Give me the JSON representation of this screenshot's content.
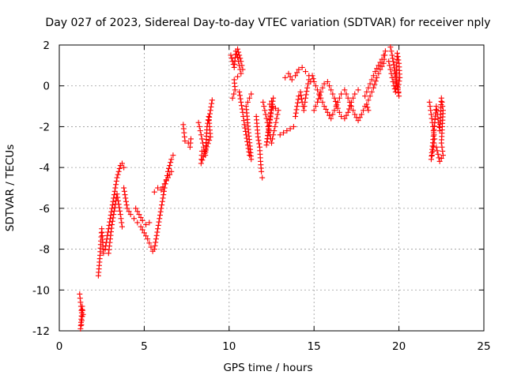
{
  "chart_data": {
    "type": "scatter",
    "title": "Day 027 of 2023, Sidereal Day-to-day VTEC variation (SDTVAR) for receiver nply",
    "xlabel": "GPS time / hours",
    "ylabel": "SDTVAR / TECUs",
    "xlim": [
      0,
      25
    ],
    "ylim": [
      -12,
      2
    ],
    "xticks": [
      0,
      5,
      10,
      15,
      20,
      25
    ],
    "yticks": [
      -12,
      -10,
      -8,
      -6,
      -4,
      -2,
      0,
      2
    ],
    "xtick_labels": [
      "0",
      "5",
      "10",
      "15",
      "20",
      "25"
    ],
    "ytick_labels": [
      "-12",
      "-10",
      "-8",
      "-6",
      "-4",
      "-2",
      "0",
      "2"
    ],
    "grid": true,
    "marker": "+",
    "series": [
      {
        "name": "SDTVAR",
        "color": "#ff0000",
        "segments": [
          [
            [
              1.2,
              -10.2
            ],
            [
              1.25,
              -10.6
            ],
            [
              1.3,
              -11.0
            ],
            [
              1.35,
              -11.3
            ],
            [
              1.3,
              -11.7
            ],
            [
              1.25,
              -11.9
            ],
            [
              1.35,
              -10.8
            ],
            [
              1.4,
              -11.2
            ]
          ],
          [
            [
              2.3,
              -9.3
            ],
            [
              2.35,
              -8.8
            ],
            [
              2.4,
              -8.3
            ],
            [
              2.45,
              -7.6
            ],
            [
              2.5,
              -7.0
            ],
            [
              2.6,
              -8.2
            ],
            [
              2.7,
              -8.0
            ],
            [
              2.8,
              -7.5
            ],
            [
              2.9,
              -7.0
            ],
            [
              3.0,
              -6.5
            ],
            [
              3.1,
              -6.0
            ],
            [
              3.2,
              -5.5
            ],
            [
              3.3,
              -5.0
            ],
            [
              3.4,
              -4.5
            ],
            [
              3.5,
              -4.2
            ],
            [
              3.6,
              -3.9
            ],
            [
              3.7,
              -3.8
            ],
            [
              3.8,
              -4.0
            ]
          ],
          [
            [
              2.9,
              -8.2
            ],
            [
              3.0,
              -7.5
            ],
            [
              3.1,
              -6.8
            ],
            [
              3.2,
              -6.3
            ],
            [
              3.3,
              -5.8
            ],
            [
              3.4,
              -5.3
            ],
            [
              3.5,
              -5.8
            ],
            [
              3.6,
              -6.3
            ],
            [
              3.7,
              -6.9
            ]
          ],
          [
            [
              3.8,
              -5.0
            ],
            [
              3.9,
              -5.5
            ],
            [
              4.0,
              -6.0
            ],
            [
              4.2,
              -6.3
            ],
            [
              4.4,
              -6.5
            ],
            [
              4.6,
              -6.7
            ],
            [
              4.8,
              -6.9
            ],
            [
              5.0,
              -7.2
            ],
            [
              5.2,
              -7.5
            ],
            [
              5.4,
              -7.9
            ],
            [
              5.5,
              -8.1
            ],
            [
              5.6,
              -8.0
            ],
            [
              5.7,
              -7.5
            ],
            [
              5.8,
              -7.0
            ],
            [
              5.9,
              -6.5
            ],
            [
              6.0,
              -6.0
            ],
            [
              6.1,
              -5.5
            ],
            [
              6.2,
              -5.0
            ],
            [
              6.3,
              -4.6
            ],
            [
              6.4,
              -4.2
            ],
            [
              6.5,
              -3.9
            ],
            [
              6.6,
              -3.6
            ],
            [
              6.7,
              -3.4
            ]
          ],
          [
            [
              4.5,
              -6.0
            ],
            [
              4.7,
              -6.3
            ],
            [
              4.9,
              -6.6
            ],
            [
              5.1,
              -6.8
            ],
            [
              5.3,
              -6.7
            ]
          ],
          [
            [
              5.6,
              -5.2
            ],
            [
              5.8,
              -5.0
            ],
            [
              6.0,
              -5.1
            ],
            [
              6.2,
              -4.8
            ],
            [
              6.4,
              -4.5
            ],
            [
              6.6,
              -4.2
            ]
          ],
          [
            [
              7.3,
              -1.9
            ],
            [
              7.35,
              -2.3
            ],
            [
              7.4,
              -2.7
            ]
          ],
          [
            [
              7.6,
              -2.8
            ],
            [
              7.7,
              -3.0
            ],
            [
              7.75,
              -2.6
            ]
          ],
          [
            [
              8.2,
              -1.8
            ],
            [
              8.3,
              -2.2
            ],
            [
              8.4,
              -2.6
            ],
            [
              8.5,
              -3.0
            ],
            [
              8.6,
              -3.4
            ],
            [
              8.7,
              -2.0
            ],
            [
              8.8,
              -1.5
            ],
            [
              8.9,
              -2.5
            ],
            [
              8.35,
              -3.8
            ],
            [
              8.4,
              -3.2
            ]
          ],
          [
            [
              9.0,
              -0.7
            ],
            [
              8.8,
              -1.7
            ]
          ],
          [
            [
              10.1,
              1.5
            ],
            [
              10.2,
              1.2
            ],
            [
              10.3,
              0.9
            ],
            [
              10.4,
              1.7
            ],
            [
              10.5,
              1.4
            ],
            [
              10.6,
              1.0
            ],
            [
              10.7,
              0.6
            ],
            [
              10.3,
              0.3
            ],
            [
              10.35,
              -0.2
            ],
            [
              10.2,
              -0.6
            ]
          ],
          [
            [
              10.5,
              1.8
            ],
            [
              10.6,
              1.5
            ],
            [
              10.7,
              1.2
            ],
            [
              10.8,
              0.8
            ]
          ],
          [
            [
              10.6,
              -0.3
            ],
            [
              10.7,
              -0.8
            ],
            [
              10.8,
              -1.3
            ],
            [
              10.9,
              -1.9
            ],
            [
              11.0,
              -2.4
            ],
            [
              11.1,
              -2.9
            ],
            [
              11.2,
              -3.4
            ],
            [
              11.3,
              -3.6
            ],
            [
              11.0,
              -1.0
            ],
            [
              11.2,
              -0.6
            ],
            [
              11.3,
              -0.4
            ]
          ],
          [
            [
              11.6,
              -1.5
            ],
            [
              11.7,
              -2.5
            ],
            [
              11.8,
              -3.0
            ],
            [
              11.85,
              -3.7
            ],
            [
              11.9,
              -4.2
            ],
            [
              11.95,
              -4.5
            ]
          ],
          [
            [
              12.0,
              -0.8
            ],
            [
              12.1,
              -1.2
            ],
            [
              12.2,
              -1.6
            ],
            [
              12.3,
              -2.0
            ],
            [
              12.4,
              -2.4
            ],
            [
              12.5,
              -2.8
            ],
            [
              12.6,
              -2.4
            ],
            [
              12.7,
              -2.0
            ],
            [
              12.8,
              -1.6
            ],
            [
              12.9,
              -1.2
            ],
            [
              12.4,
              -0.9
            ],
            [
              12.6,
              -0.6
            ],
            [
              12.2,
              -2.9
            ],
            [
              12.5,
              -1.0
            ]
          ],
          [
            [
              13.0,
              -2.4
            ],
            [
              13.4,
              -2.2
            ],
            [
              13.8,
              -2.0
            ]
          ],
          [
            [
              13.3,
              0.4
            ],
            [
              13.5,
              0.6
            ],
            [
              13.7,
              0.3
            ],
            [
              13.9,
              0.5
            ],
            [
              14.1,
              0.8
            ],
            [
              14.3,
              0.9
            ],
            [
              14.5,
              0.7
            ],
            [
              14.7,
              0.5
            ]
          ],
          [
            [
              13.9,
              -1.5
            ],
            [
              14.0,
              -1.0
            ],
            [
              14.1,
              -0.5
            ],
            [
              14.2,
              -0.3
            ],
            [
              14.3,
              -0.8
            ],
            [
              14.4,
              -1.2
            ],
            [
              14.5,
              -0.6
            ],
            [
              14.6,
              -0.1
            ],
            [
              14.7,
              0.3
            ],
            [
              14.8,
              0.2
            ]
          ],
          [
            [
              14.9,
              0.5
            ],
            [
              15.0,
              0.2
            ],
            [
              15.2,
              -0.2
            ],
            [
              15.4,
              -0.6
            ],
            [
              15.6,
              -1.0
            ],
            [
              15.8,
              -1.3
            ],
            [
              16.0,
              -1.6
            ],
            [
              16.2,
              -1.2
            ],
            [
              16.4,
              -0.8
            ],
            [
              16.6,
              -0.4
            ],
            [
              16.8,
              -0.2
            ],
            [
              17.0,
              -0.6
            ],
            [
              17.2,
              -1.0
            ],
            [
              17.4,
              -1.4
            ],
            [
              17.6,
              -1.7
            ],
            [
              17.8,
              -1.4
            ],
            [
              18.0,
              -1.0
            ]
          ],
          [
            [
              15.0,
              -1.2
            ],
            [
              15.2,
              -0.8
            ],
            [
              15.4,
              -0.3
            ],
            [
              15.6,
              0.1
            ],
            [
              15.8,
              0.2
            ],
            [
              16.0,
              -0.2
            ],
            [
              16.2,
              -0.6
            ],
            [
              16.4,
              -1.1
            ],
            [
              16.6,
              -1.5
            ],
            [
              16.8,
              -1.6
            ],
            [
              17.0,
              -1.3
            ],
            [
              17.2,
              -0.8
            ],
            [
              17.4,
              -0.4
            ],
            [
              17.6,
              -0.2
            ]
          ],
          [
            [
              18.0,
              -0.5
            ],
            [
              18.2,
              -0.1
            ],
            [
              18.4,
              0.3
            ],
            [
              18.6,
              0.7
            ],
            [
              18.8,
              1.0
            ],
            [
              19.0,
              1.3
            ],
            [
              19.2,
              1.7
            ],
            [
              19.1,
              1.1
            ],
            [
              18.9,
              0.8
            ],
            [
              18.7,
              0.4
            ],
            [
              18.5,
              -0.1
            ],
            [
              18.3,
              -0.5
            ],
            [
              18.1,
              -0.9
            ],
            [
              18.2,
              -1.2
            ]
          ],
          [
            [
              19.4,
              1.2
            ],
            [
              19.5,
              0.8
            ],
            [
              19.6,
              0.4
            ],
            [
              19.7,
              0.0
            ],
            [
              19.8,
              -0.3
            ],
            [
              19.9,
              1.6
            ],
            [
              20.0,
              1.1
            ],
            [
              20.05,
              0.4
            ],
            [
              19.95,
              -0.1
            ],
            [
              20.0,
              -0.5
            ],
            [
              19.6,
              1.5
            ],
            [
              19.5,
              1.9
            ]
          ],
          [
            [
              21.8,
              -0.8
            ],
            [
              21.9,
              -1.4
            ],
            [
              22.0,
              -2.0
            ],
            [
              22.1,
              -2.6
            ],
            [
              22.0,
              -3.2
            ],
            [
              21.9,
              -3.6
            ],
            [
              22.2,
              -1.0
            ],
            [
              22.3,
              -1.6
            ],
            [
              22.4,
              -2.2
            ],
            [
              22.5,
              -0.6
            ],
            [
              22.6,
              -1.2
            ],
            [
              22.5,
              -2.8
            ],
            [
              22.6,
              -3.4
            ],
            [
              22.4,
              -3.7
            ],
            [
              22.2,
              -3.0
            ]
          ]
        ]
      }
    ]
  }
}
